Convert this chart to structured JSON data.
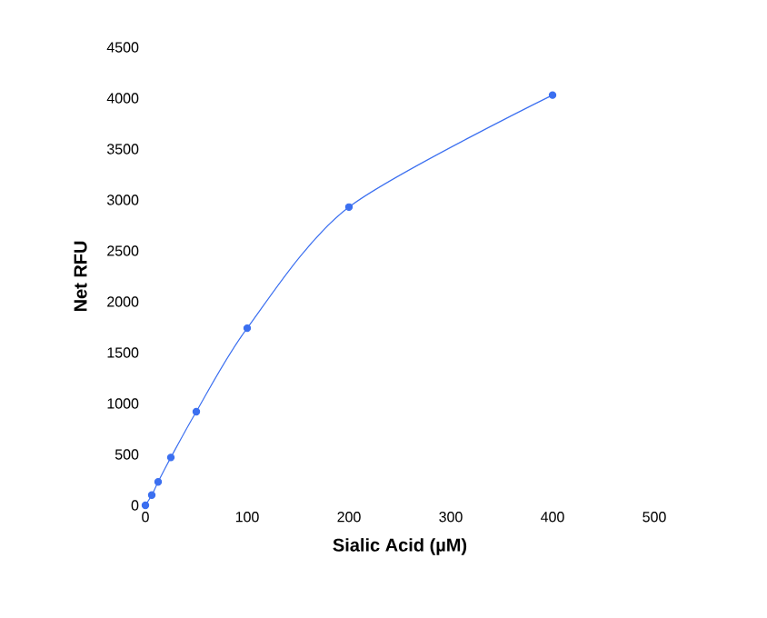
{
  "chart_data": {
    "type": "line",
    "xlabel": "Sialic Acid (µM)",
    "ylabel": "Net RFU",
    "x": [
      0,
      6.25,
      12.5,
      25,
      50,
      100,
      200,
      400
    ],
    "series": [
      {
        "color": "#3b6ff0",
        "values": [
          0,
          100,
          230,
          470,
          920,
          1740,
          2930,
          4030
        ]
      }
    ],
    "xlim": [
      0,
      500
    ],
    "xticks": [
      0,
      100,
      200,
      300,
      400,
      500
    ],
    "ylim": [
      0,
      4500
    ],
    "yticks": [
      0,
      500,
      1000,
      1500,
      2000,
      2500,
      3000,
      3500,
      4000,
      4500
    ],
    "marker": "circle",
    "line_style": "solid"
  }
}
